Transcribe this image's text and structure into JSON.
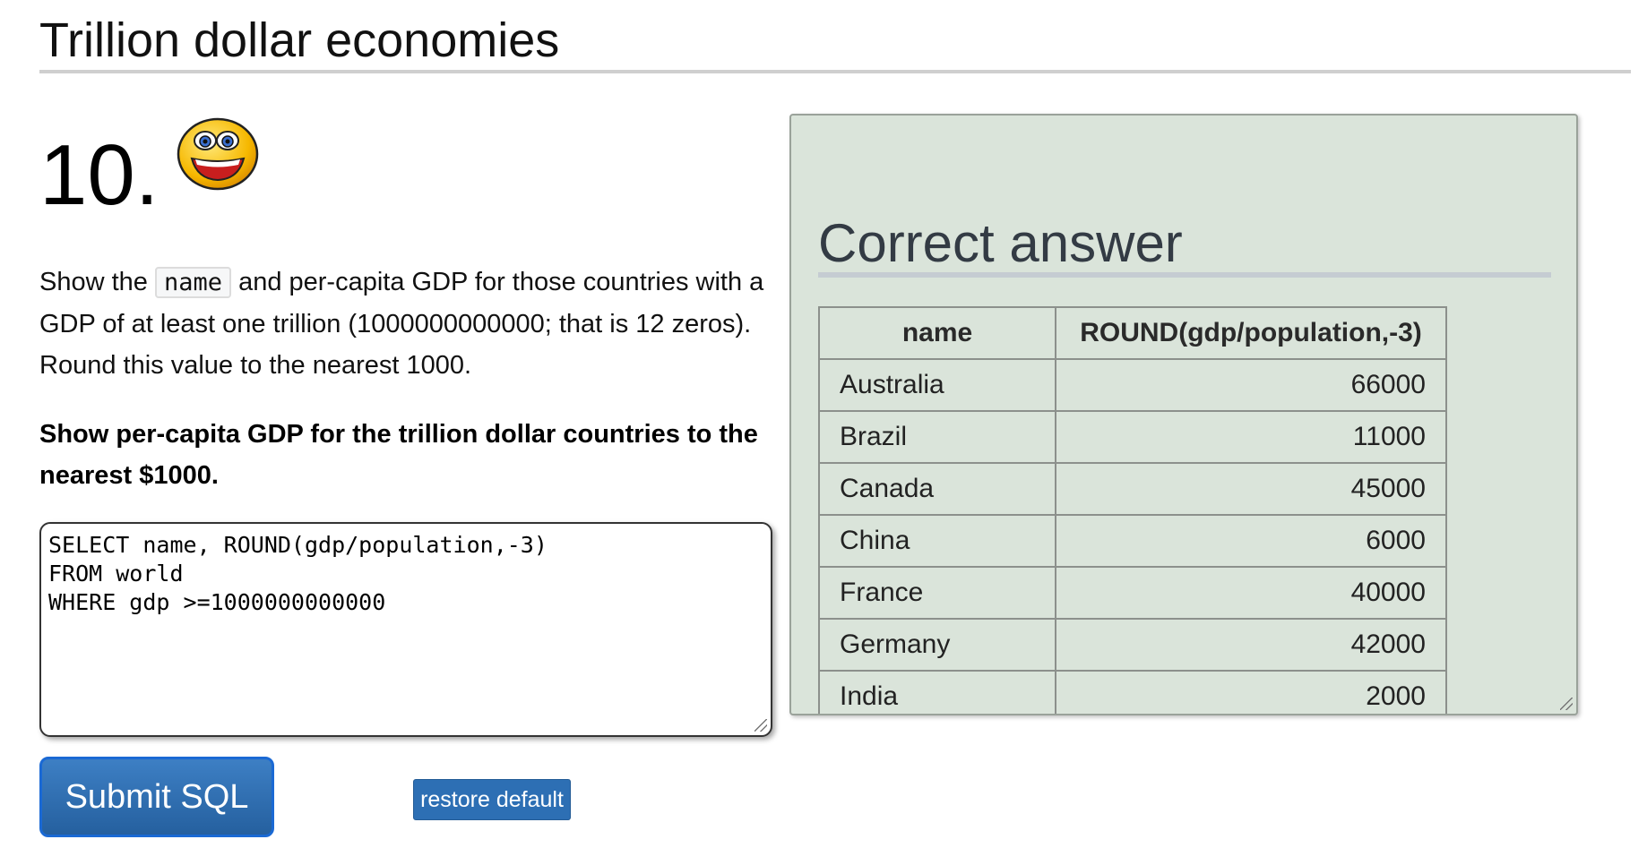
{
  "header": {
    "title": "Trillion dollar economies"
  },
  "question": {
    "number": "10.",
    "emoji_icon": "grinning-smiley-icon",
    "text_before_code": "Show the ",
    "code_term": "name",
    "text_after_code": " and per-capita GDP for those countries with a GDP of at least one trillion (1000000000000; that is 12 zeros). Round this value to the nearest 1000.",
    "task": "Show per-capita GDP for the trillion dollar countries to the nearest $1000."
  },
  "editor": {
    "sql": "SELECT name, ROUND(gdp/population,-3)\nFROM world\nWHERE gdp >=1000000000000"
  },
  "buttons": {
    "submit_label": "Submit SQL",
    "restore_label": "restore default"
  },
  "answer": {
    "title": "Correct answer",
    "columns": [
      "name",
      "ROUND(gdp/population,-3)"
    ],
    "rows": [
      [
        "Australia",
        "66000"
      ],
      [
        "Brazil",
        "11000"
      ],
      [
        "Canada",
        "45000"
      ],
      [
        "China",
        "6000"
      ],
      [
        "France",
        "40000"
      ],
      [
        "Germany",
        "42000"
      ],
      [
        "India",
        "2000"
      ]
    ]
  },
  "colors": {
    "panel_background": "#dae4da",
    "button_blue": "#2d6fb4",
    "submit_border": "#1a69d4"
  }
}
